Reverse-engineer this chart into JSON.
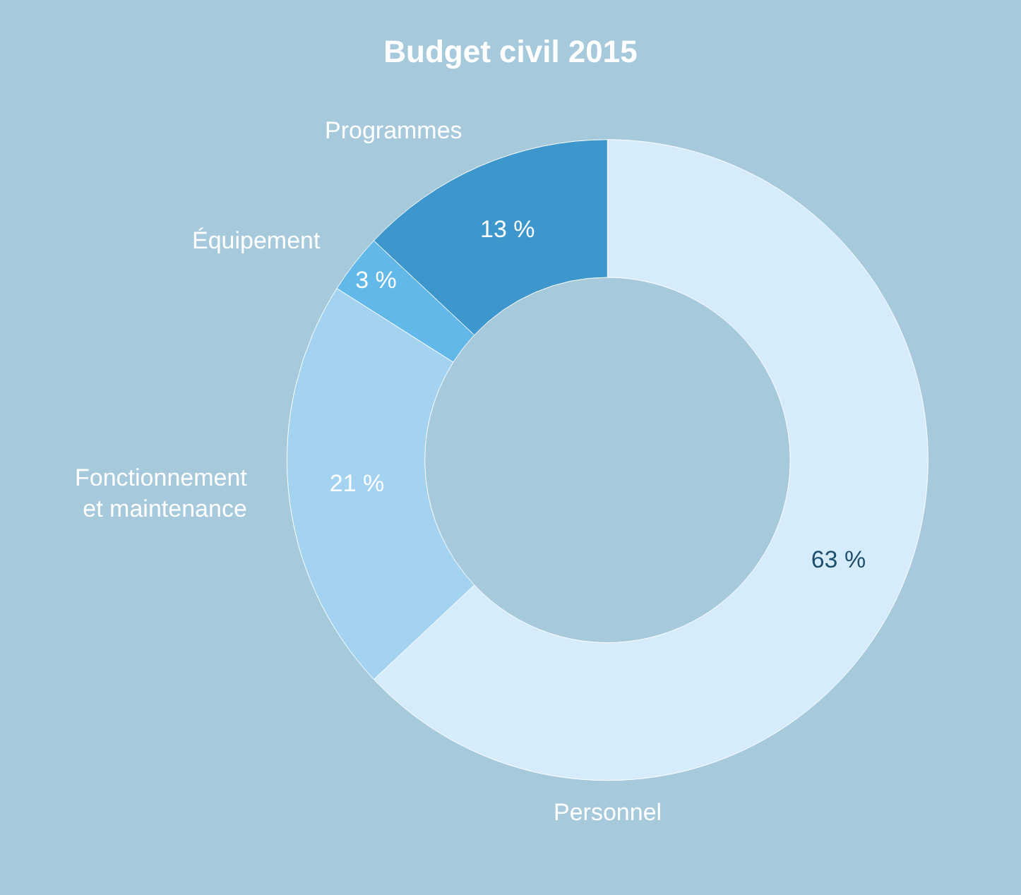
{
  "chart_data": {
    "type": "donut",
    "title": "Budget civil 2015",
    "categories": [
      "Personnel",
      "Fonctionnement\net maintenance",
      "Équipement",
      "Programmes"
    ],
    "values": [
      63,
      21,
      3,
      13
    ],
    "colors": [
      "#d6ecfa",
      "#a3d3f0",
      "#62b8e8",
      "#3d97cc"
    ],
    "value_labels": [
      "63 %",
      "21 %",
      "3 %",
      "13 %"
    ]
  }
}
